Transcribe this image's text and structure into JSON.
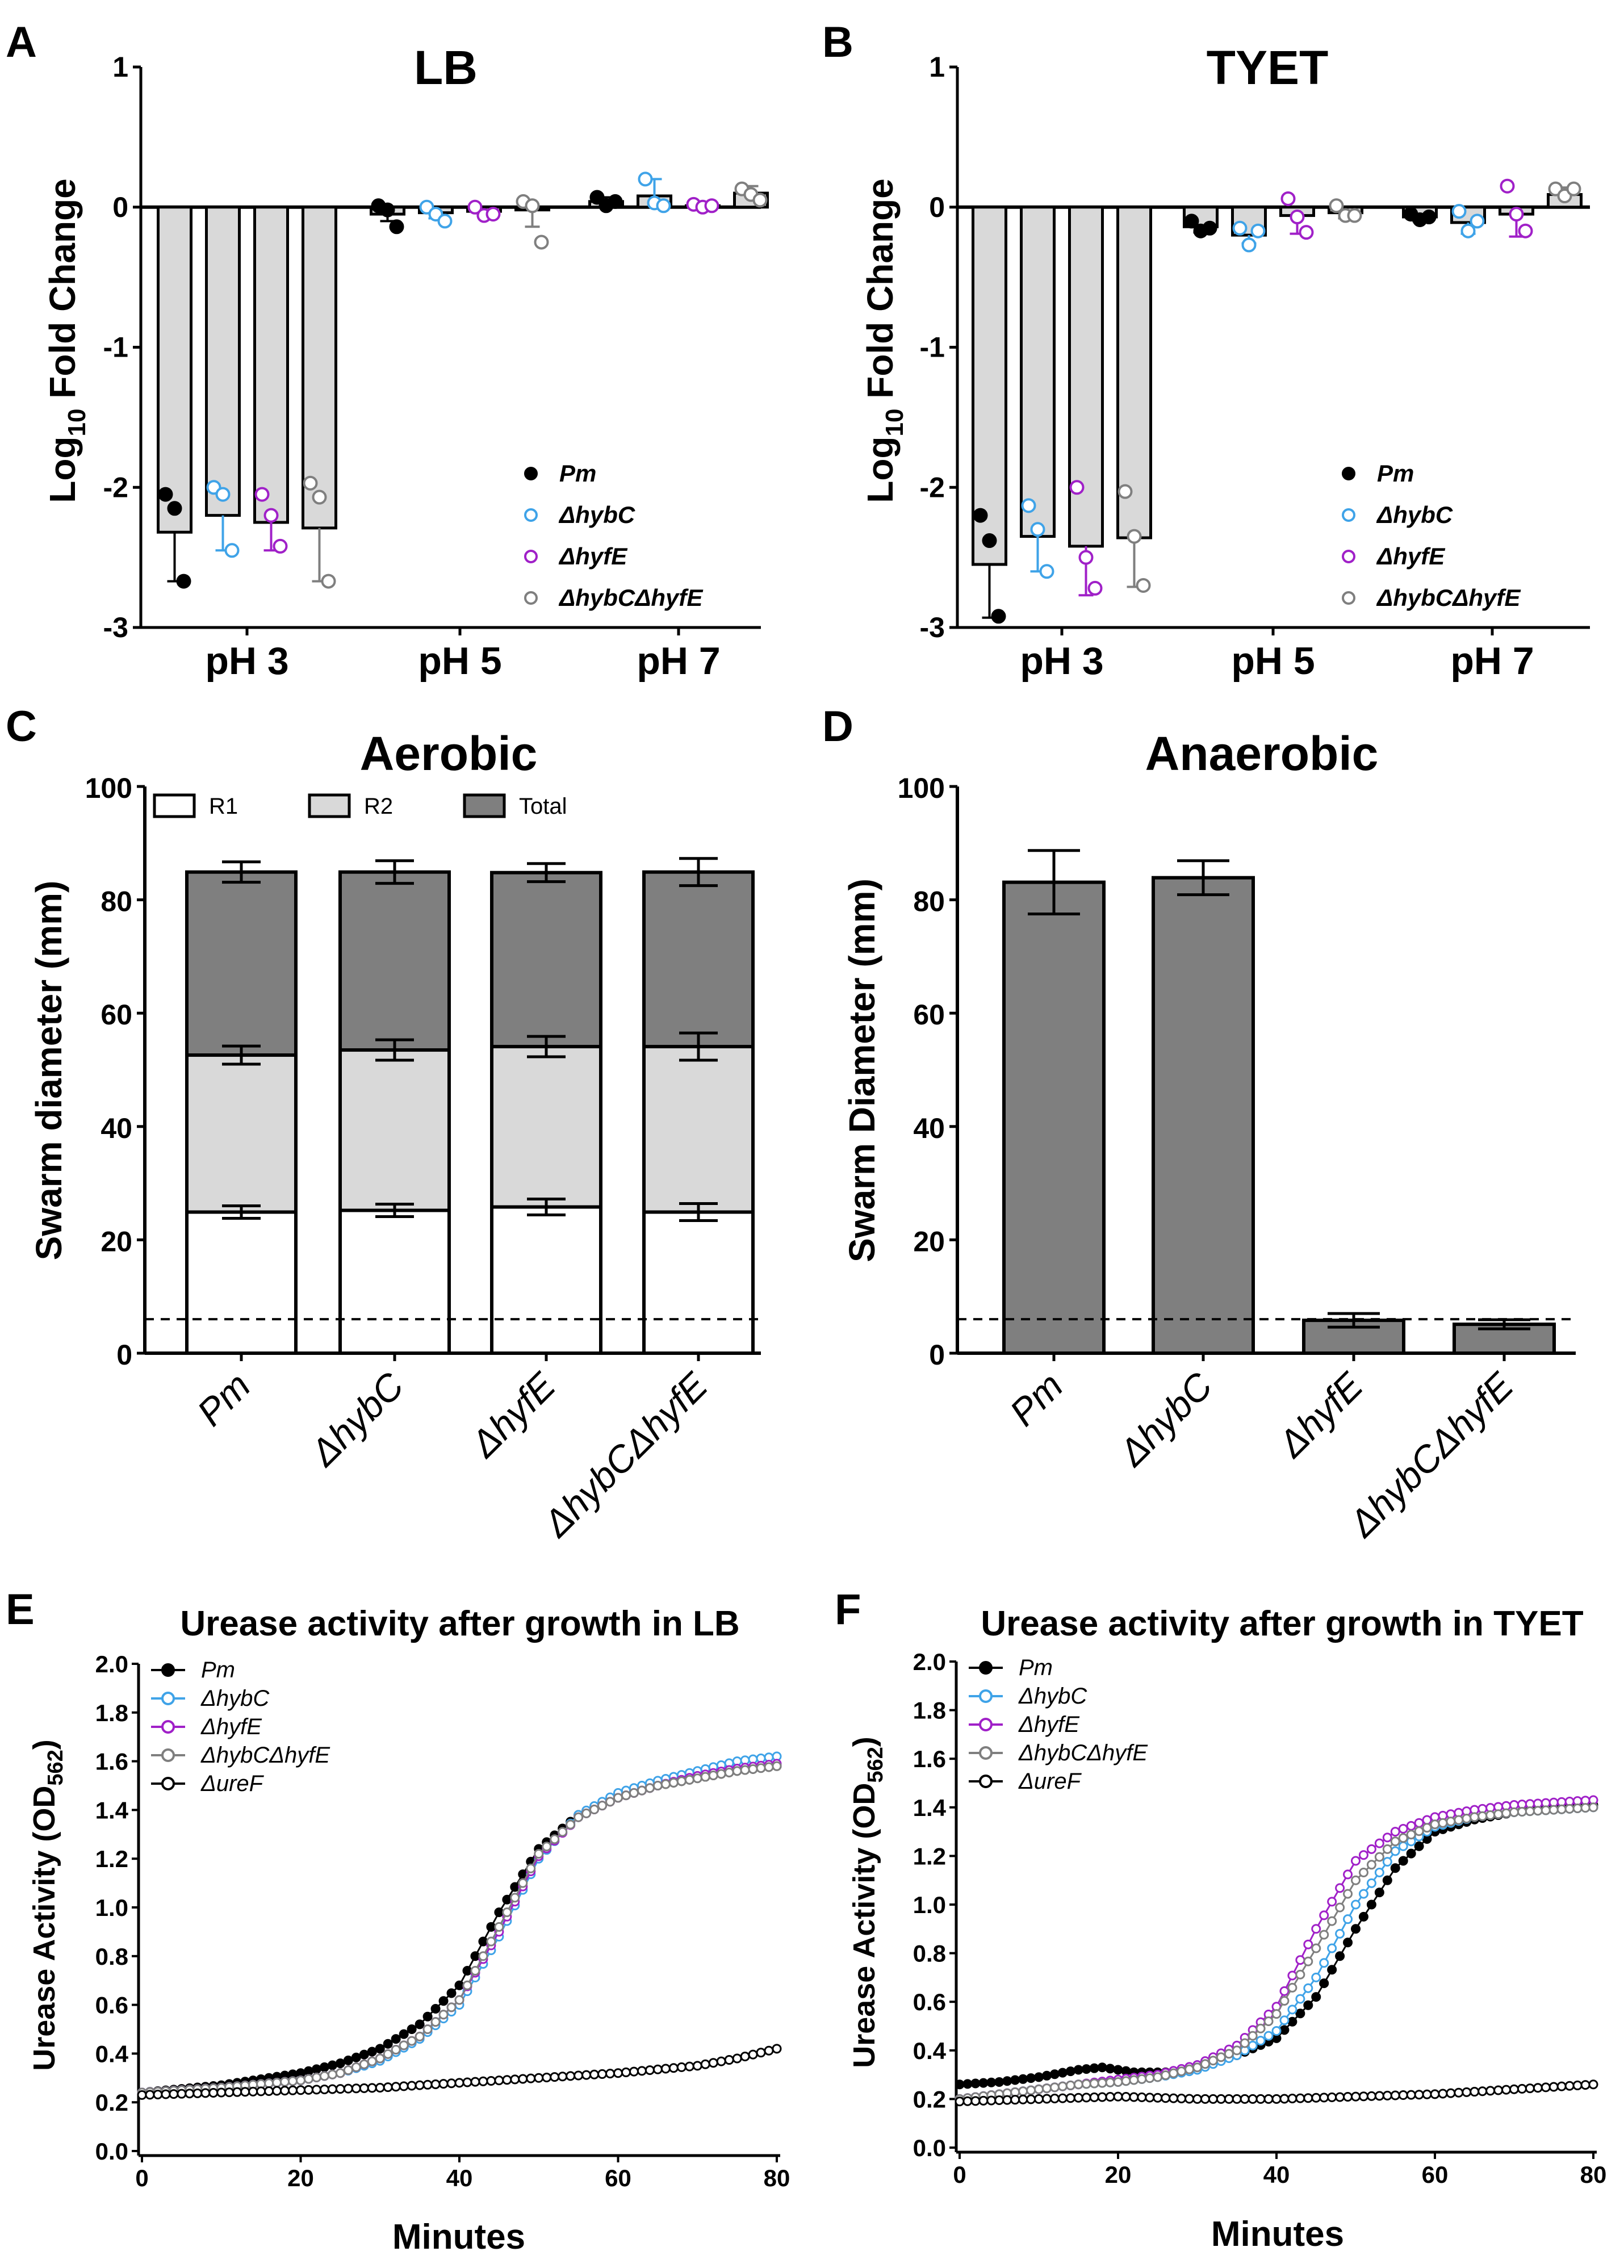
{
  "figure": {
    "panels": {
      "A": {
        "letter": "A",
        "title": "LB",
        "ylabel_main": "Log",
        "ylabel_sub": "10",
        "ylabel_rest": " Fold Change"
      },
      "B": {
        "letter": "B",
        "title": "TYET",
        "ylabel_main": "Log",
        "ylabel_sub": "10",
        "ylabel_rest": " Fold Change"
      },
      "C": {
        "letter": "C",
        "title": "Aerobic",
        "ylabel": "Swarm diameter (mm)"
      },
      "D": {
        "letter": "D",
        "title": "Anaerobic",
        "ylabel": "Swarm Diameter (mm)"
      },
      "E": {
        "letter": "E",
        "title": "Urease activity after growth in LB",
        "ylabel_main": "Urease Activity (OD",
        "ylabel_sub": "562",
        "ylabel_rest": ")",
        "xlabel": "Minutes"
      },
      "F": {
        "letter": "F",
        "title": "Urease activity after growth in TYET",
        "ylabel_main": "Urease Activity (OD",
        "ylabel_sub": "562",
        "ylabel_rest": ")",
        "xlabel": "Minutes"
      }
    }
  },
  "chart_data": [
    {
      "id": "A",
      "type": "bar",
      "title": "LB",
      "ylabel": "Log10 Fold Change",
      "ylim": [
        -3,
        1
      ],
      "yticks": [
        1,
        0,
        -1,
        -2,
        -3
      ],
      "groups": [
        "pH 3",
        "pH 5",
        "pH 7"
      ],
      "series": [
        {
          "name": "Pm",
          "color": "#000000",
          "filled": true,
          "means": [
            -2.32,
            -0.05,
            0.04
          ],
          "sd": [
            0.35,
            0.05,
            0.03
          ],
          "points": [
            [
              -2.05,
              -2.15,
              -2.67
            ],
            [
              0.01,
              -0.02,
              -0.14
            ],
            [
              0.07,
              0.01,
              0.04
            ]
          ]
        },
        {
          "name": "ΔhybC",
          "color": "#3fa3e8",
          "filled": false,
          "means": [
            -2.2,
            -0.04,
            0.08
          ],
          "sd": [
            0.25,
            0.04,
            0.12
          ],
          "points": [
            [
              -2.0,
              -2.05,
              -2.45
            ],
            [
              0.0,
              -0.05,
              -0.1
            ],
            [
              0.2,
              0.03,
              0.01
            ]
          ]
        },
        {
          "name": "ΔhyfE",
          "color": "#a020c8",
          "filled": false,
          "means": [
            -2.25,
            -0.03,
            0.01
          ],
          "sd": [
            0.2,
            0.03,
            0.02
          ],
          "points": [
            [
              -2.05,
              -2.2,
              -2.42
            ],
            [
              0.0,
              -0.06,
              -0.05
            ],
            [
              0.02,
              0.0,
              0.01
            ]
          ]
        },
        {
          "name": "ΔhybCΔhyfE",
          "color": "#7f7f7f",
          "filled": false,
          "means": [
            -2.29,
            -0.02,
            0.1
          ],
          "sd": [
            0.38,
            0.12,
            0.05
          ],
          "points": [
            [
              -1.97,
              -2.07,
              -2.67
            ],
            [
              0.04,
              0.01,
              -0.25
            ],
            [
              0.13,
              0.09,
              0.05
            ]
          ]
        }
      ]
    },
    {
      "id": "B",
      "type": "bar",
      "title": "TYET",
      "ylabel": "Log10 Fold Change",
      "ylim": [
        -3,
        1
      ],
      "yticks": [
        1,
        0,
        -1,
        -2,
        -3
      ],
      "groups": [
        "pH 3",
        "pH 5",
        "pH 7"
      ],
      "series": [
        {
          "name": "Pm",
          "color": "#000000",
          "filled": true,
          "means": [
            -2.55,
            -0.14,
            -0.07
          ],
          "sd": [
            0.38,
            0.04,
            0.03
          ],
          "points": [
            [
              -2.2,
              -2.38,
              -2.92
            ],
            [
              -0.1,
              -0.17,
              -0.15
            ],
            [
              -0.05,
              -0.09,
              -0.07
            ]
          ]
        },
        {
          "name": "ΔhybC",
          "color": "#3fa3e8",
          "filled": false,
          "means": [
            -2.35,
            -0.2,
            -0.11
          ],
          "sd": [
            0.25,
            0.06,
            0.08
          ],
          "points": [
            [
              -2.13,
              -2.3,
              -2.6
            ],
            [
              -0.15,
              -0.27,
              -0.17
            ],
            [
              -0.03,
              -0.17,
              -0.1
            ]
          ]
        },
        {
          "name": "ΔhyfE",
          "color": "#a020c8",
          "filled": false,
          "means": [
            -2.42,
            -0.06,
            -0.05
          ],
          "sd": [
            0.35,
            0.13,
            0.16
          ],
          "points": [
            [
              -2.0,
              -2.5,
              -2.72
            ],
            [
              0.06,
              -0.07,
              -0.18
            ],
            [
              0.15,
              -0.05,
              -0.17
            ]
          ]
        },
        {
          "name": "ΔhybCΔhyfE",
          "color": "#7f7f7f",
          "filled": false,
          "means": [
            -2.36,
            -0.04,
            0.09
          ],
          "sd": [
            0.35,
            0.04,
            0.05
          ],
          "points": [
            [
              -2.03,
              -2.35,
              -2.7
            ],
            [
              0.01,
              -0.06,
              -0.06
            ],
            [
              0.13,
              0.08,
              0.13
            ]
          ]
        }
      ]
    },
    {
      "id": "C",
      "type": "bar",
      "stacked": true,
      "title": "Aerobic",
      "ylabel": "Swarm diameter (mm)",
      "ylim": [
        0,
        100
      ],
      "yticks": [
        0,
        20,
        40,
        60,
        80,
        100
      ],
      "dashed_line": 6,
      "categories": [
        "Pm",
        "ΔhybC",
        "ΔhyfE",
        "ΔhybCΔhyfE"
      ],
      "legend": [
        "R1",
        "R2",
        "Total"
      ],
      "series": [
        {
          "name": "R1",
          "fill": "#ffffff",
          "values": [
            24.9,
            25.2,
            25.8,
            24.9
          ],
          "err": [
            1.1,
            1.1,
            1.4,
            1.5
          ]
        },
        {
          "name": "R2",
          "fill": "#d9d9d9",
          "values": [
            52.6,
            53.5,
            54.1,
            54.1
          ],
          "err": [
            1.6,
            1.8,
            1.8,
            2.4
          ]
        },
        {
          "name": "Total",
          "fill": "#7f7f7f",
          "values": [
            84.9,
            84.9,
            84.8,
            84.9
          ],
          "err": [
            1.8,
            2.0,
            1.6,
            2.4
          ]
        }
      ]
    },
    {
      "id": "D",
      "type": "bar",
      "title": "Anaerobic",
      "ylabel": "Swarm Diameter (mm)",
      "ylim": [
        0,
        100
      ],
      "yticks": [
        0,
        20,
        40,
        60,
        80,
        100
      ],
      "dashed_line": 6,
      "categories": [
        "Pm",
        "ΔhybC",
        "ΔhyfE",
        "ΔhybCΔhyfE"
      ],
      "values": [
        83.1,
        83.9,
        5.8,
        5.1
      ],
      "err": [
        5.6,
        3.0,
        1.2,
        0.8
      ],
      "fill": "#7f7f7f"
    },
    {
      "id": "E",
      "type": "line",
      "title": "Urease activity after growth in LB",
      "xlabel": "Minutes",
      "ylabel": "Urease Activity (OD562)",
      "xlim": [
        0,
        80
      ],
      "ylim": [
        0,
        2.0
      ],
      "xticks": [
        0,
        20,
        40,
        60,
        80
      ],
      "yticks": [
        0.0,
        0.2,
        0.4,
        0.6,
        0.8,
        1.0,
        1.2,
        1.4,
        1.6,
        1.8,
        2.0
      ],
      "series": [
        {
          "name": "Pm",
          "color": "#000000",
          "filled": true,
          "x": [
            0,
            10,
            20,
            25,
            30,
            35,
            40,
            45,
            50,
            55,
            60,
            65,
            70,
            75,
            80
          ],
          "y": [
            0.24,
            0.27,
            0.32,
            0.36,
            0.42,
            0.52,
            0.68,
            0.98,
            1.24,
            1.38,
            1.45,
            1.5,
            1.53,
            1.56,
            1.58
          ]
        },
        {
          "name": "ΔhybC",
          "color": "#3fa3e8",
          "filled": false,
          "x": [
            0,
            10,
            20,
            25,
            30,
            35,
            40,
            45,
            50,
            55,
            60,
            65,
            70,
            75,
            80
          ],
          "y": [
            0.24,
            0.26,
            0.29,
            0.32,
            0.37,
            0.46,
            0.6,
            0.88,
            1.2,
            1.38,
            1.47,
            1.52,
            1.56,
            1.6,
            1.62
          ]
        },
        {
          "name": "ΔhyfE",
          "color": "#a020c8",
          "filled": false,
          "x": [
            0,
            10,
            20,
            25,
            30,
            35,
            40,
            45,
            50,
            55,
            60,
            65,
            70,
            75,
            80
          ],
          "y": [
            0.24,
            0.26,
            0.29,
            0.32,
            0.38,
            0.47,
            0.62,
            0.9,
            1.21,
            1.37,
            1.45,
            1.5,
            1.54,
            1.57,
            1.59
          ]
        },
        {
          "name": "ΔhybCΔhyfE",
          "color": "#7f7f7f",
          "filled": false,
          "x": [
            0,
            10,
            20,
            25,
            30,
            35,
            40,
            45,
            50,
            55,
            60,
            65,
            70,
            75,
            80
          ],
          "y": [
            0.24,
            0.26,
            0.29,
            0.32,
            0.38,
            0.47,
            0.62,
            0.92,
            1.22,
            1.37,
            1.45,
            1.5,
            1.53,
            1.56,
            1.58
          ]
        },
        {
          "name": "ΔureF",
          "color": "#000000",
          "filled": false,
          "x": [
            0,
            10,
            20,
            30,
            40,
            50,
            60,
            70,
            75,
            80
          ],
          "y": [
            0.23,
            0.24,
            0.25,
            0.26,
            0.28,
            0.3,
            0.32,
            0.35,
            0.38,
            0.42
          ]
        }
      ]
    },
    {
      "id": "F",
      "type": "line",
      "title": "Urease activity after growth in TYET",
      "xlabel": "Minutes",
      "ylabel": "Urease Activity (OD562)",
      "xlim": [
        0,
        80
      ],
      "ylim": [
        0,
        2.0
      ],
      "xticks": [
        0,
        20,
        40,
        60,
        80
      ],
      "yticks": [
        0.0,
        0.2,
        0.4,
        0.6,
        0.8,
        1.0,
        1.2,
        1.4,
        1.6,
        1.8,
        2.0
      ],
      "series": [
        {
          "name": "Pm",
          "color": "#000000",
          "filled": true,
          "x": [
            0,
            5,
            10,
            15,
            18,
            22,
            26,
            30,
            35,
            40,
            45,
            50,
            55,
            60,
            65,
            70,
            75,
            80
          ],
          "y": [
            0.26,
            0.27,
            0.29,
            0.32,
            0.33,
            0.31,
            0.31,
            0.33,
            0.38,
            0.45,
            0.62,
            0.9,
            1.15,
            1.3,
            1.35,
            1.38,
            1.4,
            1.41
          ]
        },
        {
          "name": "ΔhybC",
          "color": "#3fa3e8",
          "filled": false,
          "x": [
            0,
            5,
            10,
            15,
            20,
            25,
            30,
            35,
            40,
            45,
            50,
            55,
            60,
            65,
            70,
            75,
            80
          ],
          "y": [
            0.2,
            0.22,
            0.24,
            0.26,
            0.27,
            0.29,
            0.32,
            0.38,
            0.48,
            0.7,
            1.0,
            1.22,
            1.32,
            1.36,
            1.38,
            1.39,
            1.4
          ]
        },
        {
          "name": "ΔhyfE",
          "color": "#a020c8",
          "filled": false,
          "x": [
            0,
            5,
            10,
            15,
            20,
            25,
            30,
            35,
            40,
            45,
            50,
            55,
            60,
            65,
            70,
            75,
            80
          ],
          "y": [
            0.2,
            0.22,
            0.24,
            0.26,
            0.28,
            0.3,
            0.34,
            0.42,
            0.58,
            0.9,
            1.18,
            1.3,
            1.36,
            1.39,
            1.41,
            1.42,
            1.43
          ]
        },
        {
          "name": "ΔhybCΔhyfE",
          "color": "#7f7f7f",
          "filled": false,
          "x": [
            0,
            5,
            10,
            15,
            20,
            25,
            30,
            35,
            40,
            45,
            50,
            55,
            60,
            65,
            70,
            75,
            80
          ],
          "y": [
            0.2,
            0.22,
            0.24,
            0.26,
            0.27,
            0.29,
            0.33,
            0.4,
            0.55,
            0.82,
            1.1,
            1.26,
            1.33,
            1.36,
            1.38,
            1.39,
            1.4
          ]
        },
        {
          "name": "ΔureF",
          "color": "#000000",
          "filled": false,
          "x": [
            0,
            10,
            20,
            30,
            40,
            50,
            60,
            70,
            80
          ],
          "y": [
            0.19,
            0.2,
            0.21,
            0.2,
            0.2,
            0.21,
            0.22,
            0.24,
            0.26
          ]
        }
      ]
    }
  ]
}
